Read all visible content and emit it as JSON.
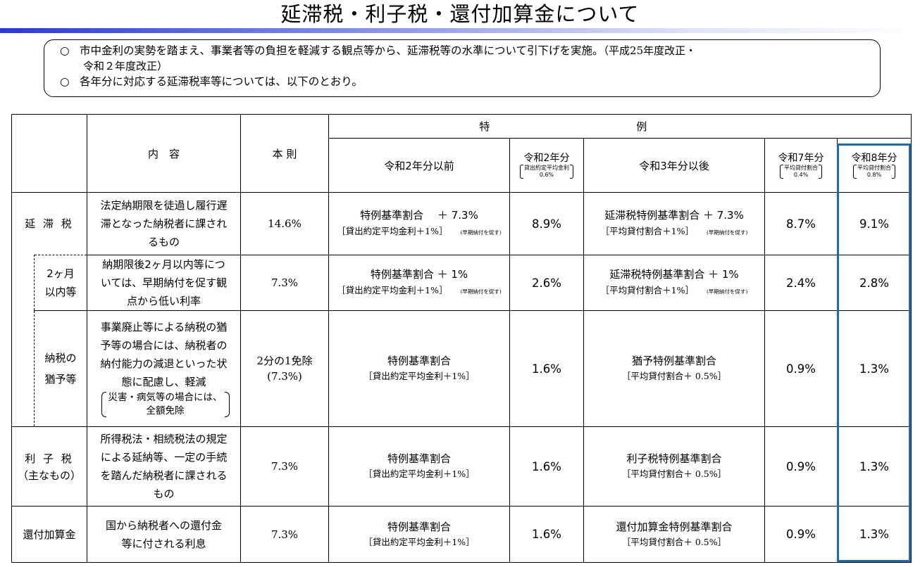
{
  "title": "延滞税・利子税・還付加算金について",
  "summary": {
    "mark": "○",
    "line1": "市中金利の実勢を踏まえ、事業者等の負担を軽減する観点等から、延滞税等の水準について引下げを実施。",
    "line1_paren": "（平成25年度改正・",
    "line1_cont": "令和２年度改正）",
    "line2": "各年分に対応する延滞税率等については、以下のとおり。"
  },
  "table": {
    "headers": {
      "content": "内　容",
      "honsoku": "本 則",
      "tokurei_left": "特",
      "tokurei_right": "例",
      "r2_before": "令和2年分以前",
      "r2": {
        "label": "令和2年分",
        "note1": "貸出約定平均金利",
        "note2": "0.6%"
      },
      "r3_after": "令和3年分以後",
      "r7": {
        "label": "令和7年分",
        "note1": "平均貸付割合",
        "note2": "0.4%"
      },
      "r8": {
        "label": "令和8年分",
        "note1": "平均貸付割合",
        "note2": "0.8%"
      }
    },
    "rows": {
      "entaizei": {
        "category": "延 滞 税",
        "content": [
          "法定納期限を徒過し履行遅",
          "滞となった納税者に課され",
          "るもの"
        ],
        "honsoku": "14.6%",
        "f_left_main": "特例基準割合　 ＋ 7.3%",
        "f_left_sub": "［貸出約定平均金利＋1%］",
        "f_left_note": "(早期納付を促す)",
        "r2": "8.9%",
        "f_right_main": "延滞税特例基準割合 ＋ 7.3%",
        "f_right_sub": "［平均貸付割合＋1%］",
        "f_right_note": "(早期納付を促す)",
        "r7": "8.7%",
        "r8": "9.1%"
      },
      "two_months": {
        "category": [
          "2ヶ月",
          "以内等"
        ],
        "content": [
          "納期限後2ヶ月以内等につ",
          "いては、早期納付を促す観",
          "点から低い利率"
        ],
        "honsoku": "7.3%",
        "f_left_main": "特例基準割合 ＋ 1%",
        "f_left_sub": "［貸出約定平均金利＋1%］",
        "f_left_note": "(早期納付を促す)",
        "r2": "2.6%",
        "f_right_main": "延滞税特例基準割合 ＋ 1%",
        "f_right_sub": "［平均貸付割合＋1%］",
        "f_right_note": "(早期納付を促す)",
        "r7": "2.4%",
        "r8": "2.8%"
      },
      "yuuyo": {
        "category": [
          "納税の",
          "猶予等"
        ],
        "content": [
          "事業廃止等による納税の猶",
          "予等の場合には、納税者の",
          "納付能力の減退といった状",
          "態に配慮し、軽減"
        ],
        "content_note": [
          "災害・病気等の場合には、",
          "全額免除"
        ],
        "honsoku": [
          "2分の1免除",
          "(7.3%)"
        ],
        "f_left_main": "特例基準割合",
        "f_left_sub": "［貸出約定平均金利＋1%］",
        "r2": "1.6%",
        "f_right_main": "猶予特例基準割合",
        "f_right_sub": "［平均貸付割合＋ 0.5%］",
        "r7": "0.9%",
        "r8": "1.3%"
      },
      "rishizei": {
        "category": [
          "利 子 税",
          "（主なもの）"
        ],
        "content": [
          "所得税法・相続税法の規定",
          "による延納等、一定の手続",
          "を踏んだ納税者に課される",
          "もの"
        ],
        "honsoku": "7.3%",
        "f_left_main": "特例基準割合",
        "f_left_sub": "［貸出約定平均金利＋1%］",
        "r2": "1.6%",
        "f_right_main": "利子税特例基準割合",
        "f_right_sub": "［平均貸付割合＋ 0.5%］",
        "r7": "0.9%",
        "r8": "1.3%"
      },
      "kanpu": {
        "category": "還付加算金",
        "content": [
          "国から納税者への還付金",
          "等に付される利息"
        ],
        "honsoku": "7.3%",
        "f_left_main": "特例基準割合",
        "f_left_sub": "［貸出約定平均金利＋1%］",
        "r2": "1.6%",
        "f_right_main": "還付加算金特例基準割合",
        "f_right_sub": "［平均貸付割合＋ 0.5%］",
        "r7": "0.9%",
        "r8": "1.3%"
      }
    }
  },
  "colors": {
    "highlight": "#1f6bb0",
    "title_bar_start": "#2b39d8"
  }
}
